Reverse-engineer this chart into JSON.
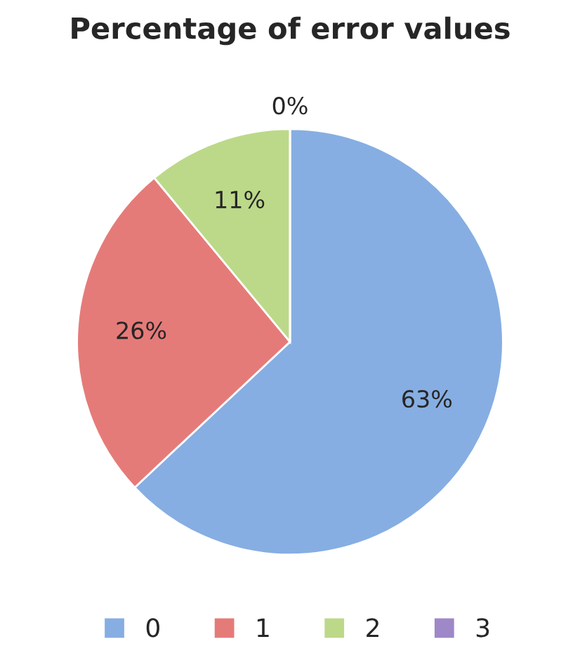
{
  "chart_data": {
    "type": "pie",
    "title": "Percentage of error values",
    "categories": [
      "0",
      "1",
      "2",
      "3"
    ],
    "values": [
      63,
      26,
      11,
      0
    ],
    "value_labels": [
      "63%",
      "26%",
      "11%",
      "0%"
    ],
    "colors": [
      "#86aee2",
      "#e57b79",
      "#bcd989",
      "#9e88c8"
    ],
    "legend": "bottom"
  }
}
